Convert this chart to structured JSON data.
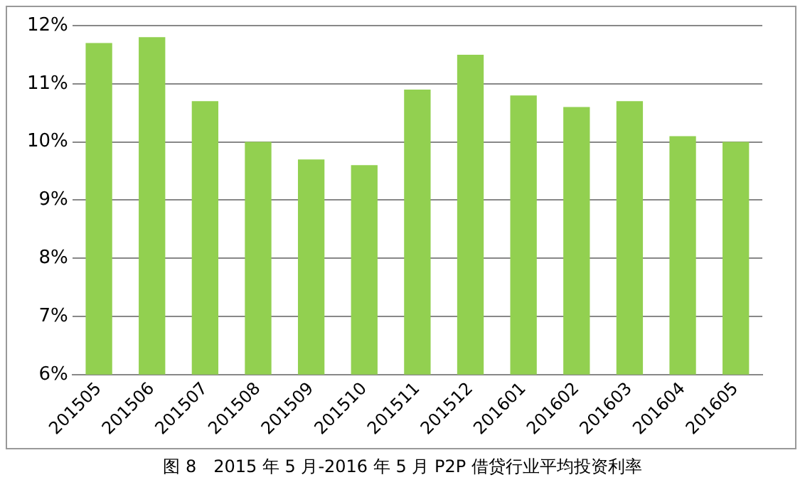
{
  "chart_data": {
    "type": "bar",
    "title": "图 8　2015 年 5 月-2016 年 5 月 P2P 借贷行业平均投资利率",
    "categories": [
      "201505",
      "201506",
      "201507",
      "201508",
      "201509",
      "201510",
      "201511",
      "201512",
      "201601",
      "201602",
      "201603",
      "201604",
      "201605"
    ],
    "values": [
      11.7,
      11.8,
      10.7,
      10.0,
      9.7,
      9.6,
      10.9,
      11.5,
      10.8,
      10.6,
      10.7,
      10.1,
      10.0
    ],
    "color": "#92d050",
    "ylim": [
      6,
      12
    ],
    "yticks": [
      {
        "value": 6,
        "label": "6%"
      },
      {
        "value": 7,
        "label": "7%"
      },
      {
        "value": 8,
        "label": "8%"
      },
      {
        "value": 9,
        "label": "9%"
      },
      {
        "value": 10,
        "label": "10%"
      },
      {
        "value": 11,
        "label": "11%"
      },
      {
        "value": 12,
        "label": "12%"
      }
    ],
    "grid": "y",
    "legend": false
  }
}
